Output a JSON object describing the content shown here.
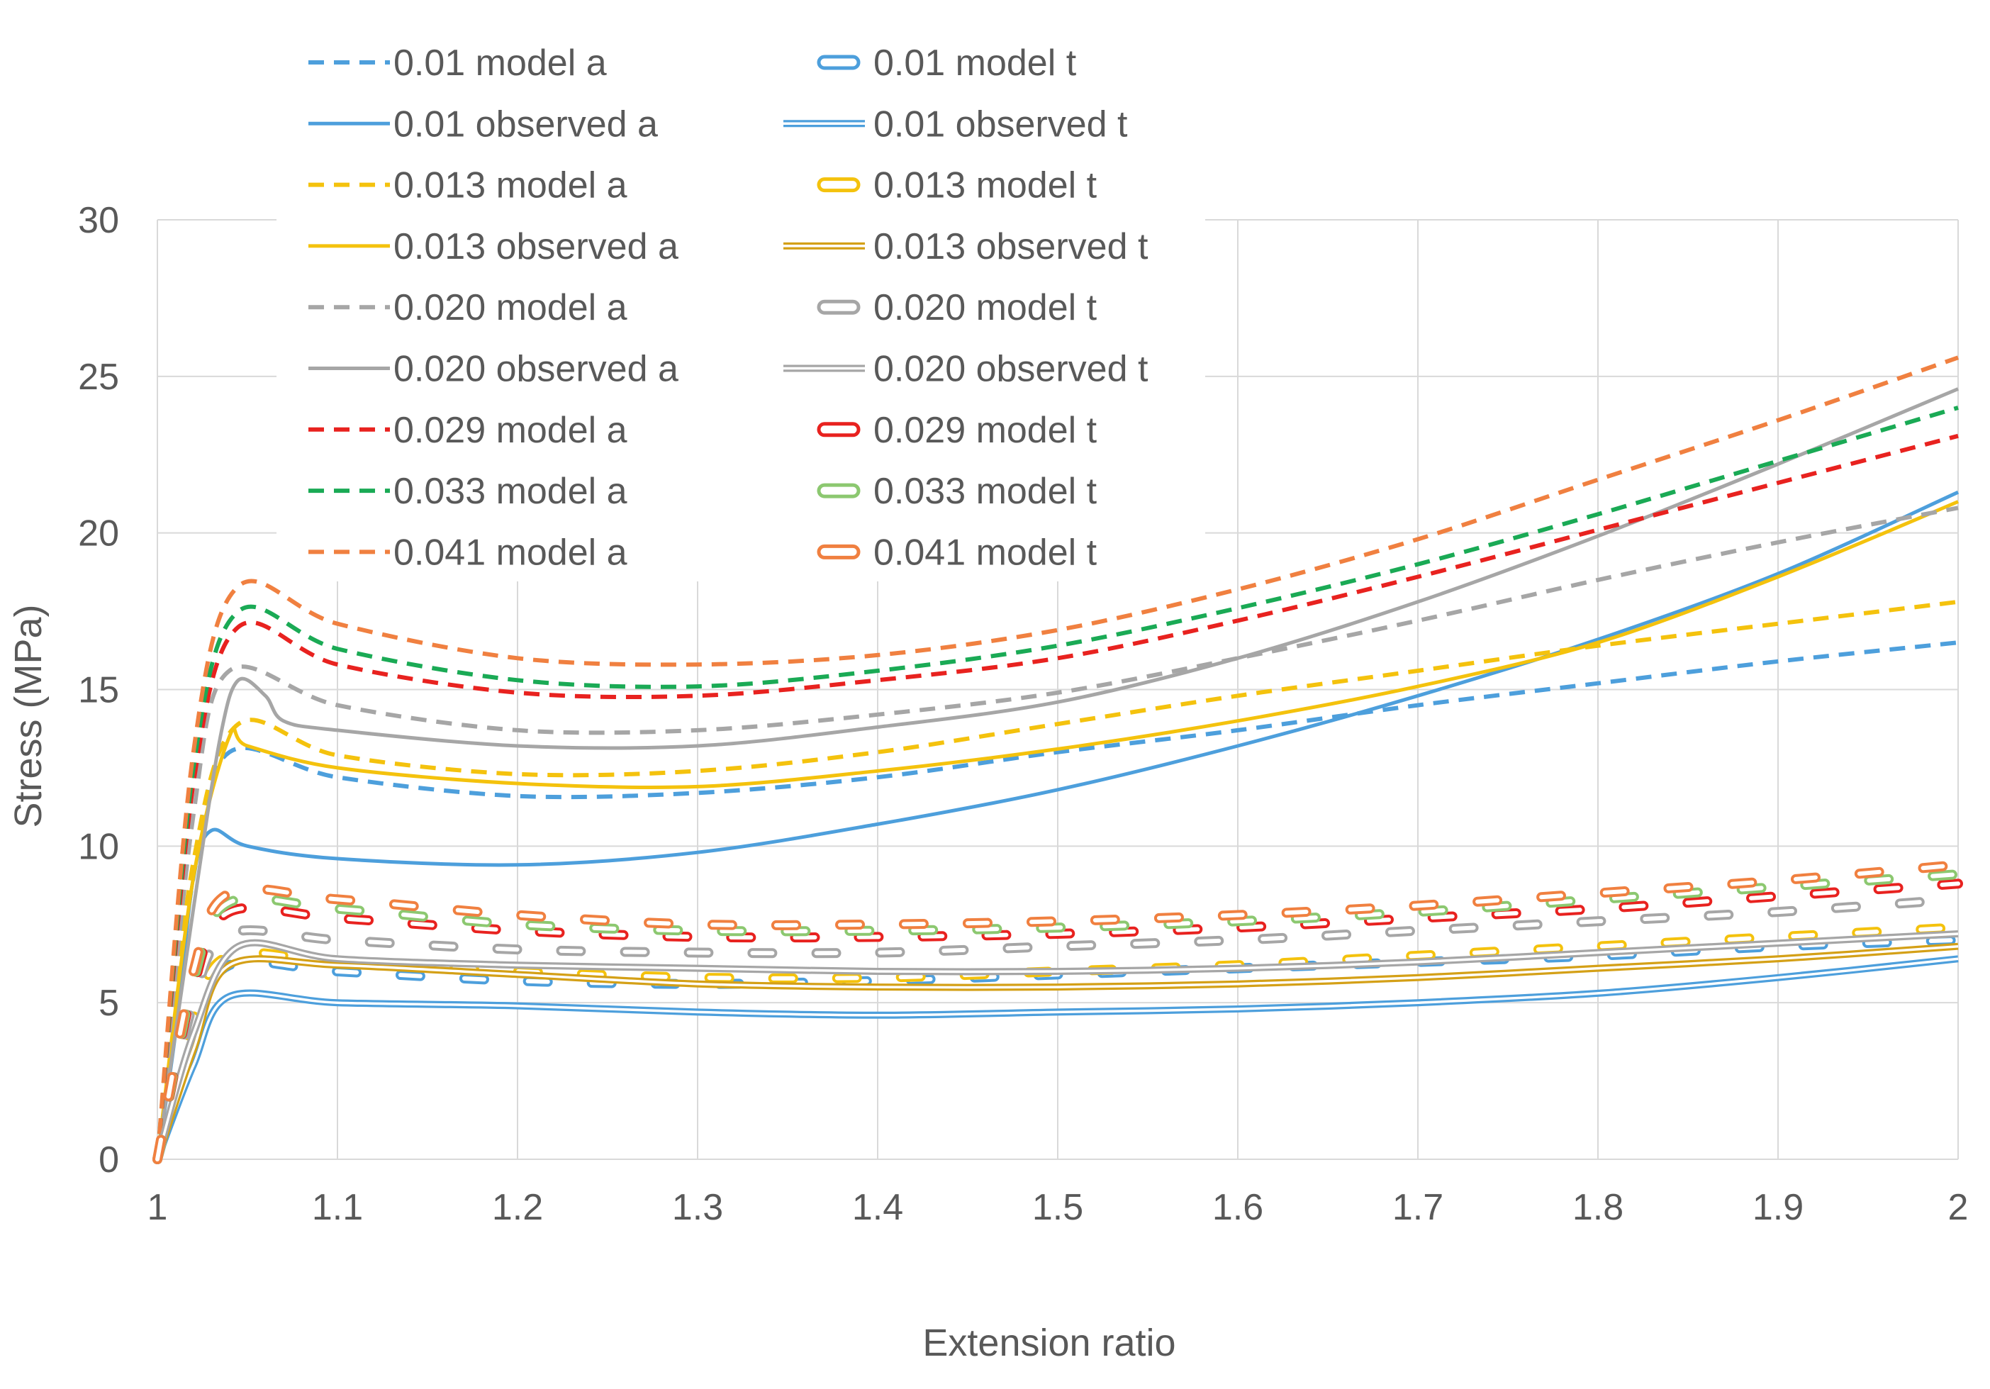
{
  "chart_data": {
    "type": "line",
    "title": "",
    "xlabel": "Extension ratio",
    "ylabel": "Stress (MPa)",
    "xlim": [
      1,
      2
    ],
    "ylim": [
      0,
      30
    ],
    "xticks": [
      1,
      1.1,
      1.2,
      1.3,
      1.4,
      1.5,
      1.6,
      1.7,
      1.8,
      1.9,
      2
    ],
    "xtick_labels": [
      "1",
      "1.1",
      "1.2",
      "1.3",
      "1.4",
      "1.5",
      "1.6",
      "1.7",
      "1.8",
      "1.9",
      "2"
    ],
    "yticks": [
      0,
      5,
      10,
      15,
      20,
      25,
      30
    ],
    "ytick_labels": [
      "0",
      "5",
      "10",
      "15",
      "20",
      "25",
      "30"
    ],
    "grid": true,
    "legend_position": "top-left, two columns",
    "colors": {
      "blue": "#4d9fdc",
      "yellow": "#f4c20d",
      "gold": "#d4a017",
      "gray": "#a6a6a6",
      "red": "#e8221f",
      "green": "#1aaa55",
      "orange": "#f08040",
      "lightgreen": "#8cc870",
      "grid": "#d9d9d9",
      "text": "#595959"
    },
    "series": [
      {
        "name": "0.01 model a",
        "style": "dashed",
        "color": "blue",
        "x": [
          1,
          1.02,
          1.04,
          1.1,
          1.2,
          1.3,
          1.4,
          1.5,
          1.6,
          1.7,
          1.8,
          1.9,
          2
        ],
        "y": [
          0,
          9,
          13,
          12.2,
          11.6,
          11.7,
          12.2,
          13,
          13.7,
          14.5,
          15.2,
          15.9,
          16.5
        ]
      },
      {
        "name": "0.01 observed a",
        "style": "solid",
        "color": "blue",
        "x": [
          1,
          1.01,
          1.02,
          1.03,
          1.05,
          1.1,
          1.2,
          1.3,
          1.4,
          1.5,
          1.6,
          1.7,
          1.8,
          1.9,
          2
        ],
        "y": [
          0,
          4,
          9,
          10.5,
          10,
          9.6,
          9.4,
          9.8,
          10.7,
          11.8,
          13.2,
          14.8,
          16.6,
          18.7,
          21.3
        ]
      },
      {
        "name": "0.013 model a",
        "style": "dashed",
        "color": "yellow",
        "x": [
          1,
          1.02,
          1.045,
          1.1,
          1.2,
          1.3,
          1.4,
          1.5,
          1.6,
          1.7,
          1.8,
          1.9,
          2
        ],
        "y": [
          0,
          9.5,
          13.9,
          12.9,
          12.3,
          12.4,
          13,
          13.9,
          14.8,
          15.6,
          16.4,
          17.1,
          17.8
        ]
      },
      {
        "name": "0.013 observed a",
        "style": "solid",
        "color": "yellow",
        "x": [
          1,
          1.02,
          1.04,
          1.05,
          1.1,
          1.2,
          1.3,
          1.4,
          1.5,
          1.6,
          1.7,
          1.8,
          1.9,
          2
        ],
        "y": [
          0,
          9,
          13.5,
          13.2,
          12.5,
          12,
          11.9,
          12.4,
          13.1,
          14,
          15.1,
          16.5,
          18.6,
          21
        ]
      },
      {
        "name": "0.020 model a",
        "style": "dashed",
        "color": "gray",
        "x": [
          1,
          1.02,
          1.04,
          1.1,
          1.2,
          1.3,
          1.4,
          1.5,
          1.6,
          1.7,
          1.8,
          1.9,
          2
        ],
        "y": [
          0,
          11,
          15.6,
          14.5,
          13.7,
          13.7,
          14.2,
          14.9,
          16,
          17.2,
          18.5,
          19.7,
          20.8
        ]
      },
      {
        "name": "0.020 observed a",
        "style": "solid",
        "color": "gray",
        "x": [
          1,
          1.02,
          1.035,
          1.045,
          1.06,
          1.07,
          1.1,
          1.2,
          1.3,
          1.4,
          1.5,
          1.6,
          1.7,
          1.8,
          1.9,
          2
        ],
        "y": [
          0,
          8,
          13.5,
          15.3,
          14.8,
          14,
          13.7,
          13.2,
          13.2,
          13.8,
          14.6,
          16,
          17.8,
          19.9,
          22.2,
          24.6
        ]
      },
      {
        "name": "0.029 model a",
        "style": "dashed",
        "color": "red",
        "x": [
          1,
          1.02,
          1.045,
          1.1,
          1.2,
          1.3,
          1.4,
          1.5,
          1.6,
          1.7,
          1.8,
          1.9,
          2
        ],
        "y": [
          0,
          12,
          17,
          15.8,
          14.9,
          14.8,
          15.3,
          16,
          17.2,
          18.6,
          20.1,
          21.6,
          23.1
        ]
      },
      {
        "name": "0.033 model a",
        "style": "dashed",
        "color": "green",
        "x": [
          1,
          1.02,
          1.045,
          1.1,
          1.2,
          1.3,
          1.4,
          1.5,
          1.6,
          1.7,
          1.8,
          1.9,
          2
        ],
        "y": [
          0,
          12.5,
          17.5,
          16.3,
          15.3,
          15.1,
          15.6,
          16.4,
          17.6,
          19,
          20.6,
          22.3,
          24
        ]
      },
      {
        "name": "0.041 model a",
        "style": "dashed",
        "color": "orange",
        "x": [
          1,
          1.02,
          1.045,
          1.1,
          1.2,
          1.3,
          1.4,
          1.5,
          1.6,
          1.7,
          1.8,
          1.9,
          2
        ],
        "y": [
          0,
          13,
          18.3,
          17.1,
          16,
          15.8,
          16.1,
          16.9,
          18.2,
          19.8,
          21.7,
          23.6,
          25.6
        ]
      },
      {
        "name": "0.01 model t",
        "style": "hollow",
        "color": "blue",
        "x": [
          1,
          1.02,
          1.04,
          1.1,
          1.2,
          1.3,
          1.4,
          1.5,
          1.6,
          1.7,
          1.8,
          1.9,
          2
        ],
        "y": [
          0,
          4,
          6.2,
          6,
          5.7,
          5.6,
          5.7,
          5.9,
          6.1,
          6.3,
          6.5,
          6.8,
          7
        ]
      },
      {
        "name": "0.01 observed t",
        "style": "double",
        "color": "blue",
        "x": [
          1,
          1.02,
          1.04,
          1.1,
          1.2,
          1.3,
          1.4,
          1.5,
          1.6,
          1.7,
          1.8,
          1.9,
          2
        ],
        "y": [
          0,
          3,
          5.2,
          5,
          4.9,
          4.7,
          4.6,
          4.7,
          4.8,
          5,
          5.3,
          5.8,
          6.4
        ]
      },
      {
        "name": "0.013 model t",
        "style": "hollow",
        "color": "yellow",
        "x": [
          1,
          1.02,
          1.04,
          1.1,
          1.2,
          1.3,
          1.4,
          1.5,
          1.6,
          1.7,
          1.8,
          1.9,
          2
        ],
        "y": [
          0,
          4.5,
          6.5,
          6.3,
          6,
          5.8,
          5.8,
          6,
          6.2,
          6.5,
          6.8,
          7.1,
          7.4
        ]
      },
      {
        "name": "0.013 observed t",
        "style": "double",
        "color": "gold",
        "x": [
          1,
          1.02,
          1.04,
          1.1,
          1.2,
          1.3,
          1.4,
          1.5,
          1.6,
          1.7,
          1.8,
          1.9,
          2
        ],
        "y": [
          0,
          3.5,
          6.2,
          6.2,
          5.9,
          5.6,
          5.5,
          5.5,
          5.6,
          5.8,
          6.1,
          6.4,
          6.8
        ]
      },
      {
        "name": "0.020 model t",
        "style": "hollow",
        "color": "gray",
        "x": [
          1,
          1.02,
          1.04,
          1.1,
          1.2,
          1.3,
          1.4,
          1.5,
          1.6,
          1.7,
          1.8,
          1.9,
          2
        ],
        "y": [
          0,
          5,
          7.2,
          7,
          6.7,
          6.6,
          6.6,
          6.8,
          7,
          7.3,
          7.6,
          7.9,
          8.3
        ]
      },
      {
        "name": "0.020 observed t",
        "style": "double",
        "color": "gray",
        "x": [
          1,
          1.02,
          1.045,
          1.1,
          1.2,
          1.3,
          1.4,
          1.5,
          1.6,
          1.7,
          1.8,
          1.9,
          2
        ],
        "y": [
          0,
          4,
          6.8,
          6.4,
          6.2,
          6.1,
          6,
          6,
          6.1,
          6.3,
          6.6,
          6.9,
          7.2
        ]
      },
      {
        "name": "0.029 model t",
        "style": "hollow",
        "color": "red",
        "x": [
          1,
          1.02,
          1.04,
          1.1,
          1.2,
          1.3,
          1.4,
          1.5,
          1.6,
          1.7,
          1.8,
          1.9,
          2
        ],
        "y": [
          0,
          5.5,
          7.9,
          7.7,
          7.3,
          7.1,
          7.1,
          7.2,
          7.4,
          7.7,
          8,
          8.4,
          8.8
        ]
      },
      {
        "name": "0.033 model t",
        "style": "hollow",
        "color": "lightgreen",
        "x": [
          1,
          1.02,
          1.04,
          1.1,
          1.2,
          1.3,
          1.4,
          1.5,
          1.6,
          1.7,
          1.8,
          1.9,
          2
        ],
        "y": [
          0,
          5.7,
          8.2,
          8,
          7.5,
          7.3,
          7.3,
          7.4,
          7.6,
          7.9,
          8.3,
          8.7,
          9.1
        ]
      },
      {
        "name": "0.041 model t",
        "style": "hollow",
        "color": "orange",
        "x": [
          1,
          1.02,
          1.04,
          1.1,
          1.2,
          1.3,
          1.4,
          1.5,
          1.6,
          1.7,
          1.8,
          1.9,
          2
        ],
        "y": [
          0,
          6,
          8.5,
          8.3,
          7.8,
          7.5,
          7.5,
          7.6,
          7.8,
          8.1,
          8.5,
          8.9,
          9.4
        ]
      }
    ],
    "legend": {
      "left": [
        "0.01 model a",
        "0.01 observed a",
        "0.013 model a",
        "0.013 observed a",
        "0.020 model a",
        "0.020 observed a",
        "0.029 model a",
        "0.033 model a",
        "0.041 model a"
      ],
      "right": [
        "0.01 model t",
        "0.01 observed t",
        "0.013 model t",
        "0.013 observed t",
        "0.020 model t",
        "0.020 observed t",
        "0.029 model t",
        "0.033 model t",
        "0.041 model t"
      ]
    }
  }
}
